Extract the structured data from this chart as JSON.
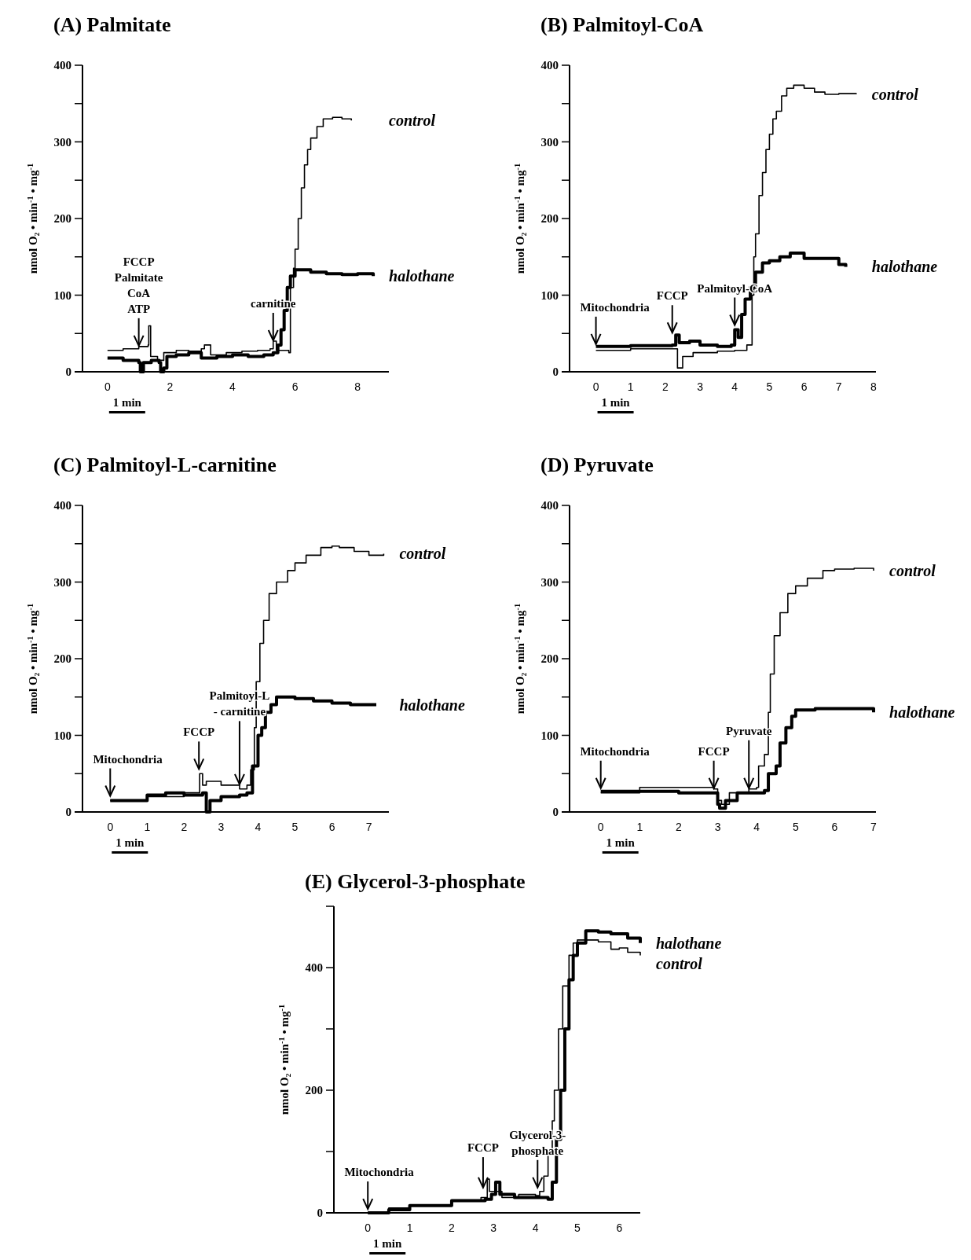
{
  "chart_data": [
    {
      "type": "step",
      "title": "(A) Palmitate",
      "ylabel": "nmol O₂ • min$^{-1}$ • mg$^{-1}$",
      "xlim": [
        -0.8,
        9
      ],
      "xticks": [
        0,
        2,
        4,
        6,
        8
      ],
      "ylim": [
        0,
        400
      ],
      "yticks": [
        0,
        {
          "value": 50,
          "label": null
        },
        100,
        {
          "value": 150,
          "label": null
        },
        200,
        {
          "value": 250,
          "label": null
        },
        300,
        {
          "value": 350,
          "label": null
        },
        400
      ],
      "series": [
        {
          "name": "control",
          "color": "#000000",
          "x": [
            0,
            0.5,
            1.0,
            1.3,
            1.32,
            1.38,
            1.6,
            1.8,
            2.2,
            2.6,
            3.0,
            3.1,
            3.3,
            3.8,
            4.3,
            4.8,
            5.2,
            5.3,
            5.4,
            5.8,
            5.85,
            5.95,
            6.0,
            6.1,
            6.2,
            6.3,
            6.4,
            6.5,
            6.7,
            6.9,
            7.2,
            7.5,
            7.8
          ],
          "values": [
            28,
            30,
            33,
            35,
            60,
            20,
            15,
            25,
            28,
            27,
            30,
            35,
            22,
            25,
            27,
            28,
            30,
            40,
            28,
            25,
            110,
            135,
            160,
            200,
            240,
            270,
            290,
            305,
            320,
            330,
            332,
            330,
            328
          ]
        },
        {
          "name": "halothane",
          "color": "#000000",
          "x": [
            0,
            0.5,
            1.0,
            1.05,
            1.15,
            1.4,
            1.65,
            1.7,
            1.8,
            1.9,
            2.2,
            2.6,
            3.0,
            3.5,
            4.0,
            4.5,
            5.0,
            5.3,
            5.45,
            5.55,
            5.65,
            5.75,
            5.85,
            6.0,
            6.5,
            7.0,
            7.5,
            8.0,
            8.5
          ],
          "values": [
            18,
            15,
            12,
            0,
            12,
            15,
            12,
            0,
            5,
            20,
            22,
            25,
            18,
            20,
            22,
            20,
            22,
            25,
            35,
            55,
            80,
            110,
            125,
            133,
            130,
            128,
            127,
            128,
            125
          ]
        }
      ],
      "annotations": [
        {
          "text": "FCCP\nPalmitate\nCoA\nATP",
          "x": 1.0,
          "y": 33
        },
        {
          "text": "carnitine",
          "x": 5.3,
          "y": 40
        },
        "1 min"
      ]
    },
    {
      "type": "step",
      "title": "(B) Palmitoyl-CoA",
      "ylabel": "nmol O₂ • min$^{-1}$ • mg$^{-1}$",
      "xlim": [
        -0.76,
        8.07
      ],
      "xticks": [
        0,
        1,
        2,
        3,
        4,
        5,
        6,
        7,
        8
      ],
      "ylim": [
        0,
        400
      ],
      "yticks": [
        0,
        {
          "value": 50,
          "label": null
        },
        100,
        {
          "value": 150,
          "label": null
        },
        200,
        {
          "value": 250,
          "label": null
        },
        300,
        {
          "value": 350,
          "label": null
        },
        400
      ],
      "series": [
        {
          "name": "control",
          "color": "#000000",
          "x": [
            0,
            1,
            2.25,
            2.35,
            2.5,
            2.8,
            3.0,
            3.5,
            4.0,
            4.3,
            4.35,
            4.5,
            4.55,
            4.6,
            4.7,
            4.8,
            4.9,
            5.0,
            5.1,
            5.2,
            5.35,
            5.5,
            5.7,
            6.0,
            6.3,
            6.6,
            7.0,
            7.5
          ],
          "values": [
            28,
            30,
            30,
            5,
            20,
            25,
            25,
            27,
            28,
            28,
            35,
            100,
            150,
            180,
            230,
            260,
            290,
            310,
            330,
            340,
            360,
            370,
            374,
            370,
            365,
            362,
            363,
            362
          ]
        },
        {
          "name": "halothane",
          "color": "#000000",
          "x": [
            0,
            1,
            2.2,
            2.3,
            2.4,
            2.7,
            3.0,
            3.5,
            3.9,
            4.0,
            4.1,
            4.2,
            4.3,
            4.45,
            4.6,
            4.8,
            5.0,
            5.3,
            5.6,
            6.0,
            6.5,
            7.0,
            7.2
          ],
          "values": [
            33,
            34,
            35,
            48,
            38,
            40,
            35,
            33,
            35,
            55,
            45,
            75,
            95,
            110,
            130,
            142,
            145,
            150,
            155,
            148,
            148,
            140,
            137
          ]
        }
      ],
      "annotations": [
        {
          "text": "Mitochondria",
          "x": 0,
          "y": 35
        },
        {
          "text": "FCCP",
          "x": 2.2,
          "y": 50
        },
        {
          "text": "Palmitoyl-CoA",
          "x": 4,
          "y": 60
        },
        "1 min"
      ]
    },
    {
      "type": "step",
      "title": "(C) Palmitoyl-L-carnitine",
      "ylabel": "nmol O₂ • min$^{-1}$ • mg$^{-1}$",
      "xlim": [
        -0.75,
        7.54
      ],
      "xticks": [
        0,
        1,
        2,
        3,
        4,
        5,
        6,
        7
      ],
      "ylim": [
        0,
        400
      ],
      "yticks": [
        0,
        {
          "value": 50,
          "label": null
        },
        100,
        {
          "value": 150,
          "label": null
        },
        200,
        {
          "value": 250,
          "label": null
        },
        300,
        {
          "value": 350,
          "label": null
        },
        400
      ],
      "series": [
        {
          "name": "control",
          "color": "#000000",
          "x": [
            0,
            1,
            2,
            2.4,
            2.42,
            2.5,
            2.6,
            3.0,
            3.5,
            3.7,
            3.8,
            3.9,
            3.95,
            4.05,
            4.15,
            4.3,
            4.5,
            4.8,
            5.0,
            5.3,
            5.7,
            6.0,
            6.2,
            6.6,
            7.0,
            7.4
          ],
          "values": [
            15,
            20,
            25,
            25,
            50,
            35,
            40,
            35,
            30,
            35,
            55,
            110,
            170,
            220,
            250,
            285,
            300,
            315,
            325,
            335,
            345,
            347,
            345,
            340,
            335,
            337
          ]
        },
        {
          "name": "halothane",
          "color": "#000000",
          "x": [
            0,
            0.5,
            1.0,
            1.5,
            2.0,
            2.5,
            2.6,
            2.7,
            3.0,
            3.5,
            3.7,
            3.85,
            4.0,
            4.1,
            4.2,
            4.35,
            4.5,
            5.0,
            5.5,
            6.0,
            6.5,
            7.0,
            7.2
          ],
          "values": [
            15,
            15,
            22,
            25,
            22,
            25,
            0,
            15,
            20,
            22,
            25,
            60,
            100,
            110,
            130,
            140,
            150,
            148,
            145,
            142,
            140,
            140,
            140
          ]
        }
      ],
      "annotations": [
        {
          "text": "Mitochondria",
          "x": 0,
          "y": 20
        },
        {
          "text": "FCCP",
          "x": 2.4,
          "y": 55
        },
        {
          "text": "Palmitoyl-L\n- carnitine",
          "x": 3.5,
          "y": 35
        },
        "1 min"
      ]
    },
    {
      "type": "step",
      "title": "(D) Pyruvate",
      "ylabel": "nmol O₂ • min$^{-1}$ • mg$^{-1}$",
      "xlim": [
        -0.8,
        7.06
      ],
      "xticks": [
        0,
        1,
        2,
        3,
        4,
        5,
        6,
        7
      ],
      "ylim": [
        0,
        400
      ],
      "yticks": [
        0,
        {
          "value": 50,
          "label": null
        },
        100,
        {
          "value": 150,
          "label": null
        },
        200,
        {
          "value": 250,
          "label": null
        },
        300,
        {
          "value": 350,
          "label": null
        },
        400
      ],
      "series": [
        {
          "name": "control",
          "color": "#000000",
          "x": [
            0,
            1,
            2,
            2.9,
            3.0,
            3.1,
            3.3,
            3.8,
            4.0,
            4.05,
            4.2,
            4.3,
            4.35,
            4.45,
            4.6,
            4.8,
            5.0,
            5.3,
            5.7,
            6.0,
            6.5,
            7.0
          ],
          "values": [
            25,
            32,
            32,
            30,
            15,
            10,
            25,
            30,
            32,
            60,
            75,
            130,
            180,
            230,
            260,
            285,
            295,
            305,
            315,
            317,
            318,
            315
          ]
        },
        {
          "name": "halothane",
          "color": "#000000",
          "x": [
            0,
            1,
            2,
            2.9,
            3.0,
            3.05,
            3.2,
            3.5,
            4.0,
            4.2,
            4.3,
            4.5,
            4.6,
            4.75,
            4.9,
            5.0,
            5.5,
            6.0,
            6.5,
            7.0
          ],
          "values": [
            27,
            27,
            25,
            25,
            10,
            5,
            15,
            25,
            25,
            28,
            50,
            60,
            90,
            110,
            125,
            133,
            135,
            135,
            135,
            130
          ]
        }
      ],
      "annotations": [
        {
          "text": "Mitochondria",
          "x": 0,
          "y": 30
        },
        {
          "text": "FCCP",
          "x": 2.9,
          "y": 30
        },
        {
          "text": "Pyruvate",
          "x": 3.8,
          "y": 30
        },
        "1 min"
      ]
    },
    {
      "type": "step",
      "title": "(E) Glycerol-3-phosphate",
      "ylabel": "nmol O₂ • min$^{-1}$ • mg$^{-1}$",
      "xlim": [
        -0.81,
        6.5
      ],
      "xticks": [
        0,
        1,
        2,
        3,
        4,
        5,
        6
      ],
      "ylim": [
        0,
        500
      ],
      "yticks": [
        0,
        {
          "value": 100,
          "label": null
        },
        200,
        {
          "value": 300,
          "label": null
        },
        400,
        {
          "value": 500,
          "label": null
        }
      ],
      "series": [
        {
          "name": "halothane",
          "color": "#000000",
          "x": [
            0,
            0.5,
            1,
            2,
            2.8,
            2.95,
            3.05,
            3.15,
            3.5,
            4.0,
            4.3,
            4.4,
            4.5,
            4.6,
            4.7,
            4.8,
            4.9,
            5.0,
            5.2,
            5.5,
            5.8,
            6.2,
            6.5
          ],
          "values": [
            0,
            5,
            12,
            20,
            22,
            30,
            50,
            30,
            25,
            25,
            22,
            50,
            120,
            200,
            300,
            380,
            420,
            440,
            460,
            458,
            455,
            448,
            440
          ]
        },
        {
          "name": "control",
          "color": "#000000",
          "x": [
            0,
            0.5,
            1,
            2,
            2.7,
            2.85,
            2.9,
            3.2,
            3.6,
            4.0,
            4.1,
            4.2,
            4.3,
            4.4,
            4.45,
            4.55,
            4.65,
            4.8,
            4.9,
            5.0,
            5.5,
            5.8,
            6.0,
            6.2,
            6.5
          ],
          "values": [
            0,
            8,
            12,
            20,
            25,
            55,
            35,
            25,
            30,
            28,
            35,
            60,
            100,
            150,
            200,
            300,
            370,
            420,
            440,
            445,
            442,
            430,
            432,
            425,
            420
          ]
        }
      ],
      "annotations": [
        {
          "text": "Mitochondria",
          "x": 0,
          "y": 5
        },
        {
          "text": "FCCP",
          "x": 2.75,
          "y": 40
        },
        {
          "text": "Glycerol-3-\nphosphate",
          "x": 4.05,
          "y": 40
        },
        "1 min"
      ]
    }
  ]
}
